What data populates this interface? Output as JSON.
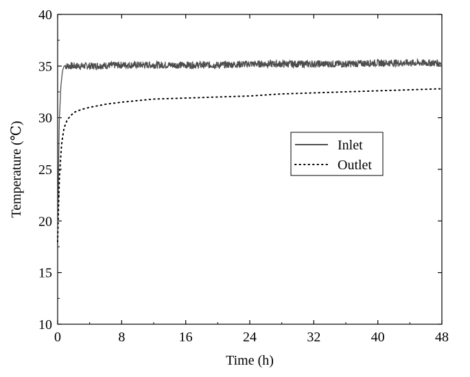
{
  "chart_data": {
    "type": "line",
    "title": "",
    "xlabel": "Time (h)",
    "ylabel": "Temperature (℃)",
    "xlim": [
      0,
      48
    ],
    "ylim": [
      10,
      40
    ],
    "xticks": [
      0,
      8,
      16,
      24,
      32,
      40,
      48
    ],
    "yticks": [
      10,
      15,
      20,
      25,
      30,
      35,
      40
    ],
    "grid": false,
    "legend_position": "center-right",
    "series": [
      {
        "name": "Inlet",
        "style": "solid",
        "color": "#4d4d4d",
        "x": [
          0,
          0.2,
          0.4,
          0.6,
          0.8,
          1.0,
          1.5,
          2,
          4,
          8,
          12,
          16,
          20,
          24,
          28,
          32,
          36,
          40,
          44,
          48
        ],
        "y": [
          18.5,
          29.5,
          33.0,
          34.5,
          35.0,
          35.0,
          35.0,
          35.0,
          35.0,
          35.1,
          35.1,
          35.1,
          35.1,
          35.2,
          35.2,
          35.2,
          35.2,
          35.3,
          35.3,
          35.3
        ]
      },
      {
        "name": "Outlet",
        "style": "dotted",
        "color": "#000000",
        "x": [
          0,
          0.2,
          0.5,
          0.8,
          1.2,
          2,
          3,
          4,
          6,
          8,
          12,
          16,
          20,
          24,
          28,
          32,
          36,
          40,
          44,
          48
        ],
        "y": [
          18.0,
          24.0,
          27.5,
          29.0,
          29.8,
          30.5,
          30.8,
          31.0,
          31.3,
          31.5,
          31.8,
          31.9,
          32.0,
          32.1,
          32.3,
          32.4,
          32.5,
          32.6,
          32.7,
          32.8
        ]
      }
    ]
  }
}
